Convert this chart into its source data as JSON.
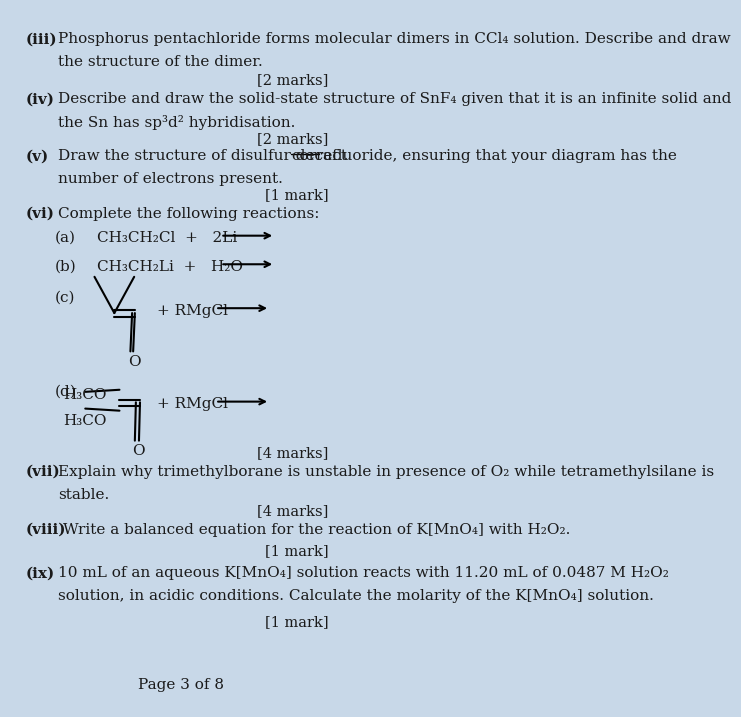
{
  "background_color": "#c8d8e8",
  "page_number": "Page 3 of 8",
  "font_size_main": 11,
  "font_size_marks": 10.5,
  "text_color": "#1a1a1a",
  "iii_label": "(iii)",
  "iii_line1": "Phosphorus pentachloride forms molecular dimers in CCl₄ solution. Describe and draw",
  "iii_line2": "the structure of the dimer.",
  "iii_marks": "[2 marks]",
  "iv_label": "(iv)",
  "iv_line1": "Describe and draw the solid-state structure of SnF₄ given that it is an infinite solid and",
  "iv_line2": "the Sn has sp³d² hybridisation.",
  "iv_marks": "[2 marks]",
  "v_label": "(v)",
  "v_line1a": "Draw the structure of disulfur decafluoride, ensuring that your diagram has the ",
  "v_line1b": "correct",
  "v_line2": "number of electrons present.",
  "v_marks": "[1 mark]",
  "vi_label": "(vi)",
  "vi_text": "Complete the following reactions:",
  "a_label": "(a)",
  "a_eq": "CH₃CH₂Cl  +   2Li",
  "b_label": "(b)",
  "b_eq": "CH₃CH₂Li  +   H₂O",
  "c_label": "(c)",
  "c_plus": "+ RMgCl",
  "d_label": "(d)",
  "d_h3co_top": "H₃CO",
  "d_h3co_bot": "H₃CO",
  "d_plus": "+ RMgCl",
  "d_marks": "[4 marks]",
  "vii_label": "(vii)",
  "vii_line1": "Explain why trimethylborane is unstable in presence of O₂ while tetramethylsilane is",
  "vii_line2": "stable.",
  "vii_marks": "[4 marks]",
  "viii_label": "(viii)",
  "viii_text": "Write a balanced equation for the reaction of K[MnO₄] with H₂O₂.",
  "viii_marks": "[1 mark]",
  "ix_label": "(ix)",
  "ix_line1": "10 mL of an aqueous K[MnO₄] solution reacts with 11.20 mL of 0.0487 M H₂O₂",
  "ix_line2": "solution, in acidic conditions. Calculate the molarity of the K[MnO₄] solution.",
  "ix_marks": "[1 mark]"
}
